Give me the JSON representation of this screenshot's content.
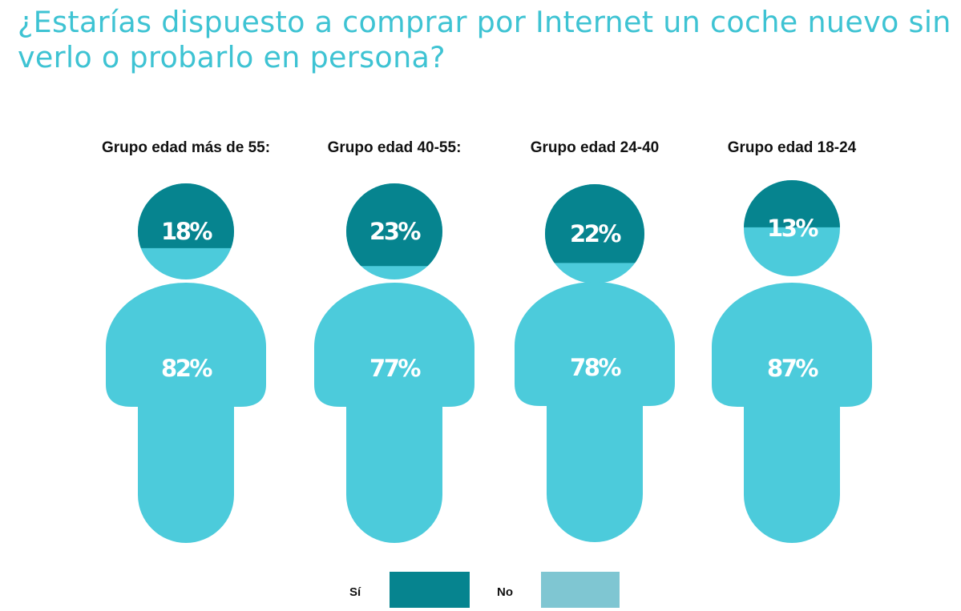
{
  "title": "¿Estarías dispuesto a comprar por Internet un coche nuevo sin verlo o probarlo en persona?",
  "colors": {
    "title": "#3ec3d3",
    "si": "#06848f",
    "no": "#4ccbdb",
    "no_legend": "#7fc6d2",
    "label": "#111111"
  },
  "legend": [
    {
      "label": "Sí",
      "color": "#06848f"
    },
    {
      "label": "No",
      "color": "#7fc6d2"
    }
  ],
  "chart_data": {
    "type": "pictograph",
    "categories": [
      "Grupo edad más de 55:",
      "Grupo edad 40-55:",
      "Grupo edad 24-40",
      "Grupo edad 18-24"
    ],
    "series": [
      {
        "name": "Sí",
        "values": [
          18,
          23,
          22,
          13
        ],
        "labels": [
          "18%",
          "23%",
          "22%",
          "13%"
        ]
      },
      {
        "name": "No",
        "values": [
          82,
          77,
          78,
          87
        ],
        "labels": [
          "82%",
          "77%",
          "78%",
          "87%"
        ]
      }
    ]
  }
}
